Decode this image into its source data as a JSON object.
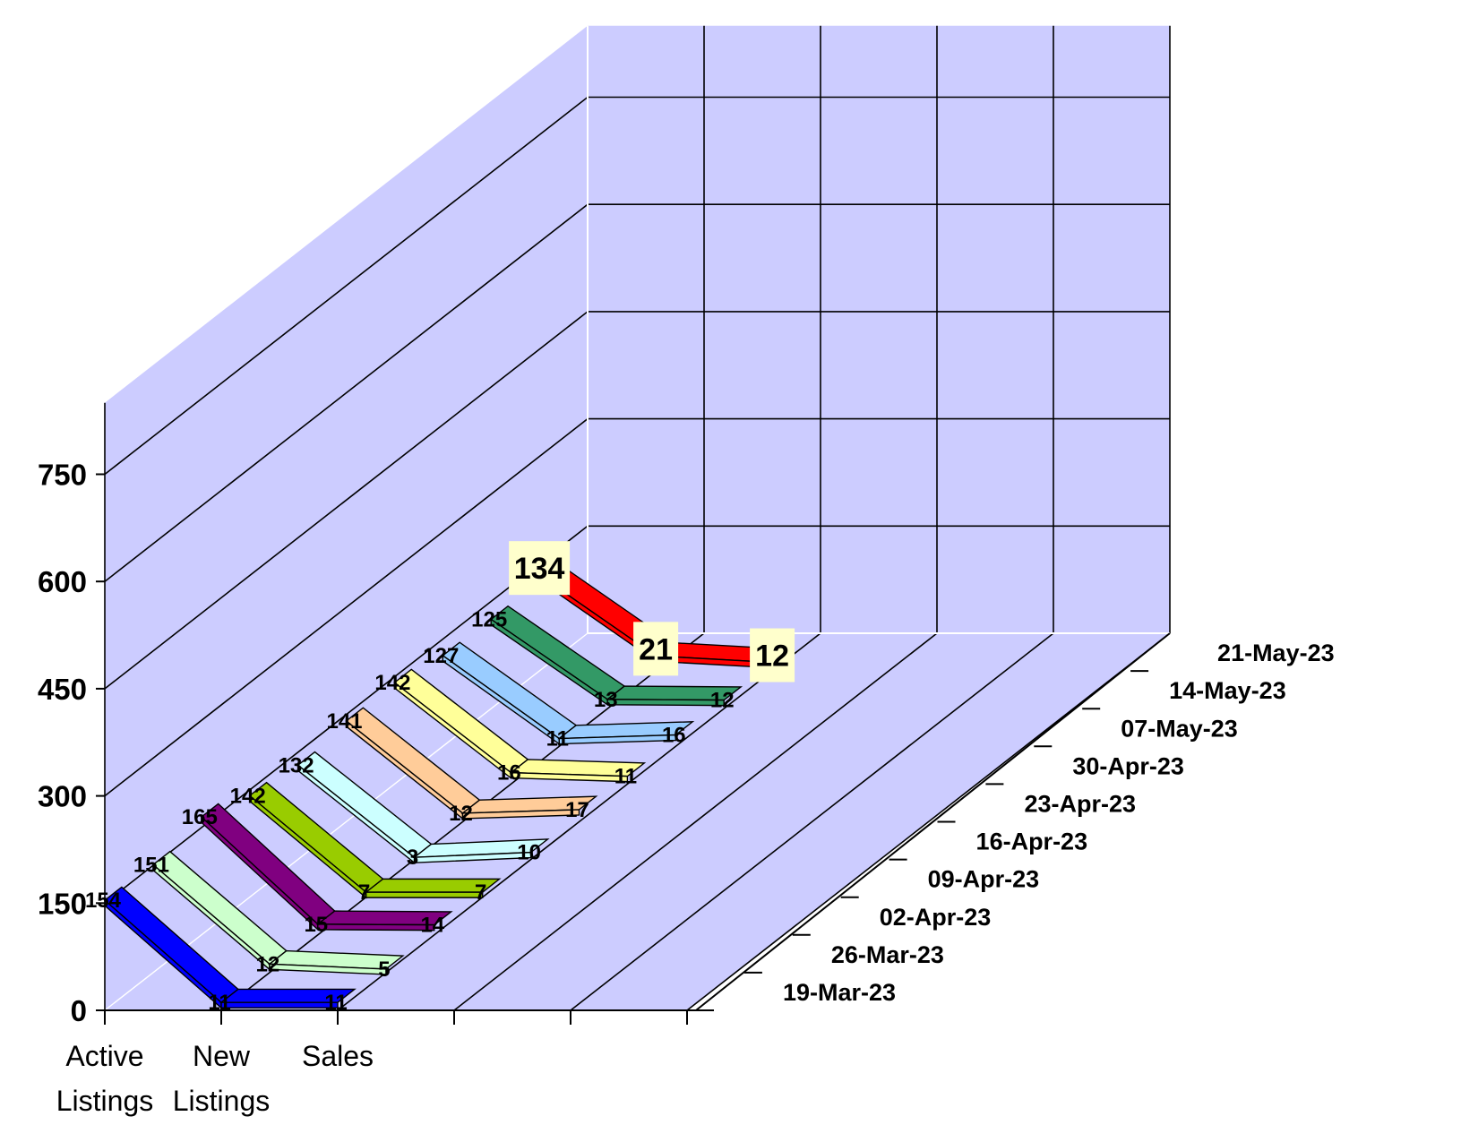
{
  "chart_data": {
    "type": "line",
    "subtype": "3d-ribbon",
    "title": "",
    "categories": [
      "Active Listings",
      "New Listings",
      "Sales"
    ],
    "series_axis": [
      "19-Mar-23",
      "26-Mar-23",
      "02-Apr-23",
      "09-Apr-23",
      "16-Apr-23",
      "23-Apr-23",
      "30-Apr-23",
      "07-May-23",
      "14-May-23",
      "21-May-23"
    ],
    "series": [
      {
        "name": "19-Mar-23",
        "values": [
          154,
          11,
          11
        ],
        "color": "#0000ff"
      },
      {
        "name": "26-Mar-23",
        "values": [
          151,
          12,
          5
        ],
        "color": "#ccffcc"
      },
      {
        "name": "02-Apr-23",
        "values": [
          165,
          15,
          14
        ],
        "color": "#800080"
      },
      {
        "name": "09-Apr-23",
        "values": [
          142,
          7,
          7
        ],
        "color": "#99cc00"
      },
      {
        "name": "16-Apr-23",
        "values": [
          132,
          3,
          10
        ],
        "color": "#ccffff"
      },
      {
        "name": "23-Apr-23",
        "values": [
          141,
          12,
          17
        ],
        "color": "#ffcc99"
      },
      {
        "name": "30-Apr-23",
        "values": [
          142,
          16,
          11
        ],
        "color": "#ffff99"
      },
      {
        "name": "07-May-23",
        "values": [
          127,
          11,
          16
        ],
        "color": "#99ccff"
      },
      {
        "name": "14-May-23",
        "values": [
          125,
          13,
          12
        ],
        "color": "#339966"
      },
      {
        "name": "21-May-23",
        "values": [
          134,
          21,
          12
        ],
        "color": "#ff0000"
      }
    ],
    "highlighted_series": "21-May-23",
    "y_ticks": [
      "0",
      "150",
      "300",
      "450",
      "600",
      "750"
    ],
    "ylim": [
      0,
      850
    ],
    "grid": true,
    "colors": {
      "wall": "#ccccff",
      "floor": "#ccccff",
      "label_box": "#ffffcc",
      "gridline": "#000000"
    }
  }
}
